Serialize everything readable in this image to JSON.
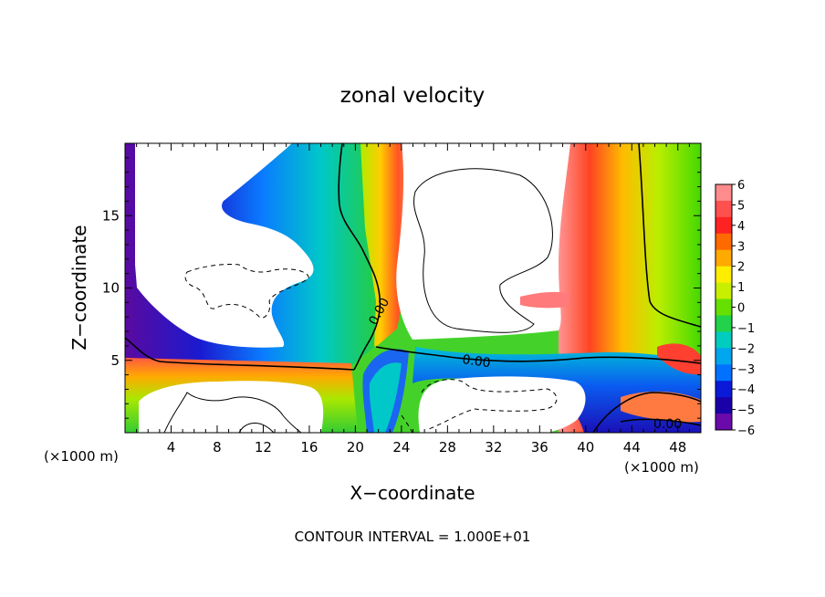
{
  "chart_data": {
    "type": "heatmap",
    "title": "zonal velocity",
    "xlabel": "X−coordinate",
    "ylabel": "Z−coordinate",
    "x_unit_left": "(×1000 m)",
    "x_unit_right": "(×1000 m)",
    "xlim": [
      0,
      50
    ],
    "ylim": [
      0,
      20
    ],
    "x_ticks": [
      4,
      8,
      12,
      16,
      20,
      24,
      28,
      32,
      36,
      40,
      44,
      48
    ],
    "x_tick_labels": [
      "4",
      "8",
      "12",
      "16",
      "20",
      "24",
      "28",
      "32",
      "36",
      "40",
      "44",
      "48"
    ],
    "y_ticks": [
      5,
      10,
      15
    ],
    "y_tick_labels": [
      "5",
      "10",
      "15"
    ],
    "footer": "CONTOUR INTERVAL = 1.000E+01",
    "contour_labels": [
      {
        "text": "0.00",
        "x": 21.8,
        "y": 8.5,
        "angle": -62
      },
      {
        "text": "0.00",
        "x": 30.8,
        "y": 5.1,
        "angle": 8
      },
      {
        "text": "0.00",
        "x": 47.2,
        "y": 0.5,
        "angle": 0
      }
    ],
    "colorbar": {
      "labels": [
        "6",
        "5",
        "4",
        "3",
        "2",
        "1",
        "0",
        "−1",
        "−2",
        "−3",
        "−4",
        "−5",
        "−6"
      ],
      "colors": [
        "#ff8c8c",
        "#ff5050",
        "#ff2222",
        "#ff6a00",
        "#ffaa00",
        "#ffee00",
        "#c8ee00",
        "#66e000",
        "#22d24a",
        "#00ccc0",
        "#00a6ee",
        "#0072ff",
        "#0a1ad8",
        "#1a00a8",
        "#6a0aaa"
      ]
    }
  }
}
